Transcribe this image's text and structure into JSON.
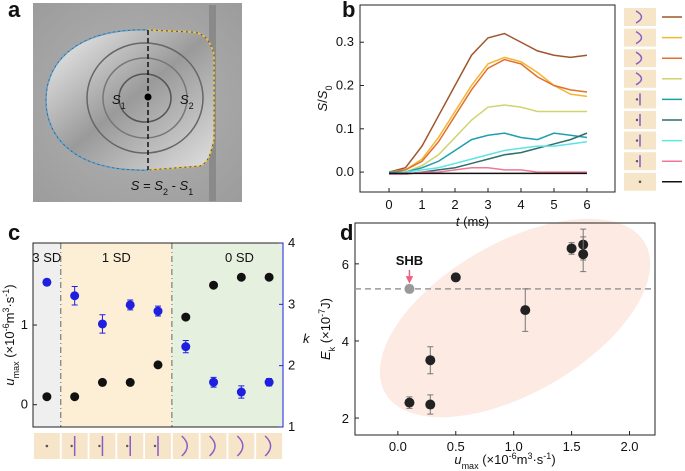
{
  "panels": [
    "a",
    "b",
    "c",
    "d"
  ],
  "image": {
    "s1": [
      "S",
      "1"
    ],
    "s2": [
      "S",
      "2"
    ],
    "equation": [
      "S",
      " = ",
      "S",
      "2",
      " - ",
      "S",
      "1"
    ]
  },
  "chart_data": [
    {
      "type": "line",
      "ylabel": [
        "S",
        "/",
        "S",
        "0"
      ],
      "xlabel": [
        "t",
        " (ms)"
      ],
      "x": [
        0,
        0.5,
        1,
        1.5,
        2,
        2.5,
        3,
        3.5,
        4,
        4.5,
        5,
        5.5,
        6
      ],
      "series": [
        {
          "color": "#a0562c",
          "values": [
            0,
            0.01,
            0.06,
            0.13,
            0.2,
            0.27,
            0.31,
            0.32,
            0.3,
            0.28,
            0.27,
            0.265,
            0.27
          ]
        },
        {
          "color": "#f5b530",
          "values": [
            0,
            0.005,
            0.03,
            0.08,
            0.14,
            0.2,
            0.25,
            0.265,
            0.255,
            0.23,
            0.2,
            0.18,
            0.175
          ]
        },
        {
          "color": "#e2702e",
          "values": [
            0,
            0.005,
            0.025,
            0.07,
            0.13,
            0.19,
            0.24,
            0.26,
            0.25,
            0.22,
            0.2,
            0.19,
            0.185
          ]
        },
        {
          "color": "#d2d26e",
          "values": [
            0,
            0,
            0.015,
            0.04,
            0.08,
            0.12,
            0.15,
            0.155,
            0.15,
            0.14,
            0.14,
            0.14,
            0.14
          ]
        },
        {
          "color": "#1f9fae",
          "values": [
            0,
            0,
            0.01,
            0.025,
            0.05,
            0.075,
            0.085,
            0.09,
            0.08,
            0.075,
            0.09,
            0.085,
            0.08
          ]
        },
        {
          "color": "#2f6f6b",
          "values": [
            -0.005,
            -0.005,
            0,
            0.005,
            0.01,
            0.02,
            0.03,
            0.04,
            0.045,
            0.055,
            0.065,
            0.075,
            0.09
          ]
        },
        {
          "color": "#5fe3e6",
          "values": [
            -0.005,
            0,
            0.005,
            0.01,
            0.02,
            0.03,
            0.04,
            0.05,
            0.055,
            0.06,
            0.06,
            0.065,
            0.07
          ]
        },
        {
          "color": "#f07896",
          "values": [
            -0.005,
            -0.005,
            0,
            0,
            0.005,
            0.01,
            0.01,
            0.005,
            0.005,
            0,
            0,
            0,
            0
          ]
        },
        {
          "color": "#111111",
          "values": [
            -0.003,
            -0.003,
            -0.003,
            -0.003,
            -0.003,
            -0.003,
            -0.003,
            -0.003,
            -0.003,
            -0.003,
            -0.003,
            -0.003,
            -0.003
          ]
        }
      ],
      "xlim": [
        -0.88,
        6.85
      ],
      "ylim": [
        -0.046,
        0.386
      ],
      "xticks": [
        0,
        1,
        2,
        3,
        4,
        5,
        6
      ],
      "yticks": [
        {
          "value": 0,
          "label": "0.0"
        },
        0.1,
        0.2,
        0.3
      ]
    },
    {
      "type": "dual_scatter",
      "categories": [
        null,
        null,
        null,
        null,
        null,
        null,
        null,
        null,
        null
      ],
      "regions": [
        {
          "label": "3 SD",
          "color": "#efefef"
        },
        {
          "label": "1 SD",
          "color": "#fcefd6"
        },
        {
          "label": "0 SD",
          "color": "#e6f0df"
        }
      ],
      "ylabel": [
        "u",
        "max",
        " (×10",
        "-6",
        "m",
        "3",
        "·s",
        "-1",
        ")"
      ],
      "y2label": "k",
      "series": [
        {
          "color": "#111111",
          "values": [
            0.1,
            0.1,
            0.28,
            0.28,
            0.5,
            1.1,
            1.5,
            1.6,
            1.6
          ]
        },
        {
          "color": "#1f1fe0",
          "axis": "y2",
          "values": [
            3.36,
            3.14,
            2.68,
            2.99,
            2.89,
            2.31,
            1.73,
            1.57,
            1.73
          ],
          "errors": [
            0.05,
            0.15,
            0.15,
            0.08,
            0.08,
            0.1,
            0.08,
            0.1,
            0.06
          ]
        }
      ],
      "ylim": [
        -0.28,
        2.03
      ],
      "yticks": [
        0,
        1
      ],
      "y2lim": [
        1,
        4
      ],
      "y2ticks": [
        1,
        2,
        3,
        4
      ]
    },
    {
      "type": "errorbar_scatter",
      "ylabel": [
        "E",
        "k",
        " (×10",
        "-7",
        "J)"
      ],
      "xlabel": [
        "u",
        "max",
        " (×10",
        "-6",
        "m",
        "3",
        "·s",
        "-1",
        ")"
      ],
      "series": [
        {
          "color": "#222222",
          "x": [
            0.1,
            0.28,
            0.28,
            0.5,
            1.1,
            1.5,
            1.6,
            1.6
          ],
          "values": [
            2.4,
            2.35,
            3.5,
            5.65,
            4.8,
            6.4,
            6.5,
            6.25
          ],
          "errors": [
            0.15,
            0.25,
            0.35,
            0.1,
            0.55,
            0.15,
            0.4,
            0.45
          ]
        },
        {
          "color": "#999999",
          "x": [
            0.1
          ],
          "values": [
            5.35
          ],
          "errors": [
            0.1
          ]
        }
      ],
      "annotation": "SHB",
      "hline": 5.35,
      "xlim": [
        -0.37,
        2.22
      ],
      "ylim": [
        1.56,
        7.06
      ],
      "xticks": [
        {
          "value": 0,
          "label": "0.0"
        },
        0.5,
        {
          "value": 1,
          "label": "1.0"
        },
        1.5,
        {
          "value": 2,
          "label": "2.0"
        }
      ],
      "yticks": [
        2,
        4,
        6
      ]
    }
  ]
}
